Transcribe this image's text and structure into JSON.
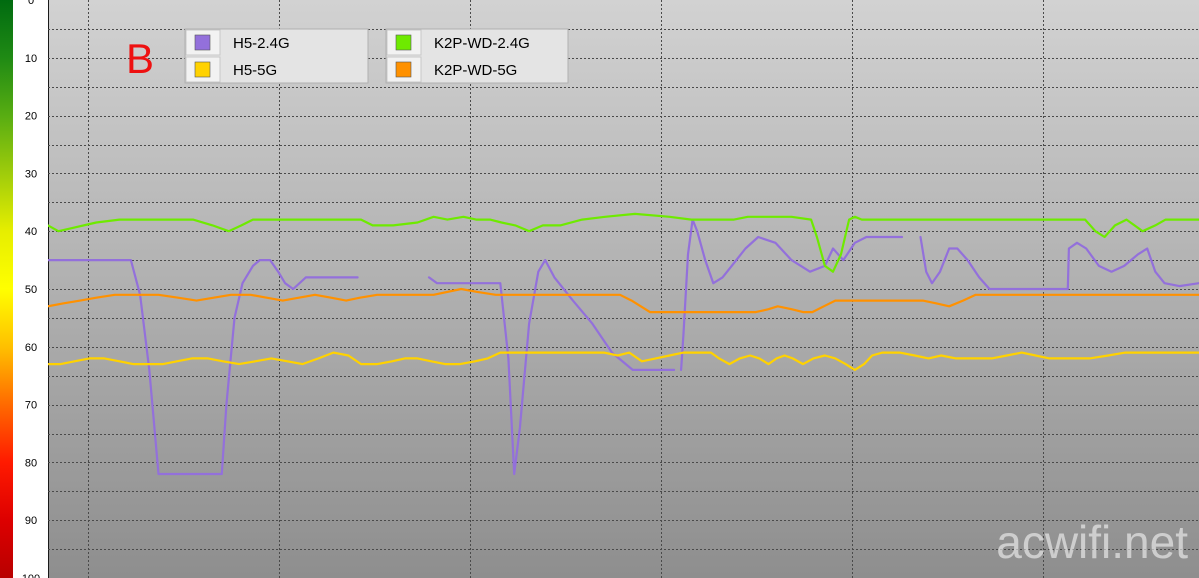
{
  "chart_data": {
    "type": "line",
    "title": "",
    "panel_label": "B",
    "watermark": "acwifi.net",
    "xlabel": "",
    "ylabel": "",
    "x_ticks": [],
    "y_ticks": [
      0,
      10,
      20,
      30,
      40,
      50,
      60,
      70,
      80,
      90,
      100
    ],
    "y_tick_labels": [
      "0",
      "10",
      "20",
      "30",
      "40",
      "50",
      "60",
      "70",
      "80",
      "90",
      "100"
    ],
    "ylim": [
      0,
      100
    ],
    "y_inverted": true,
    "xlim": [
      0,
      100
    ],
    "grid": true,
    "legend_position": "top-left",
    "colors": {
      "panel_label": "#ee1111",
      "grid": "#4a4a4a",
      "background_top": "#d2d2d2",
      "background_bottom": "#8e8e8e",
      "colorbar": [
        "#006b10",
        "#1f8a14",
        "#58ad12",
        "#9fcc0b",
        "#e6ee00",
        "#ffff00",
        "#ffc000",
        "#ff6a00",
        "#ff1a00",
        "#dd0000",
        "#b80000"
      ]
    },
    "series": [
      {
        "name": "H5-2.4G",
        "color": "#9370db",
        "points": [
          [
            0.0,
            45
          ],
          [
            7.2,
            45
          ],
          null,
          [
            7.2,
            45
          ],
          [
            8.0,
            51
          ],
          [
            8.8,
            64
          ],
          [
            9.6,
            82
          ],
          [
            15.1,
            82
          ],
          [
            15.5,
            70
          ],
          [
            16.2,
            55
          ],
          [
            16.9,
            49
          ],
          [
            17.8,
            46
          ],
          [
            18.4,
            45
          ],
          [
            19.3,
            45
          ],
          [
            20.0,
            47
          ],
          [
            20.6,
            49
          ],
          [
            21.3,
            50
          ],
          null,
          [
            21.3,
            50
          ],
          [
            22.4,
            48
          ],
          [
            26.9,
            48
          ],
          null,
          [
            33.1,
            48
          ],
          [
            33.8,
            49
          ],
          [
            39.3,
            49
          ],
          null,
          [
            39.3,
            49
          ],
          [
            40.0,
            62
          ],
          [
            40.5,
            82
          ],
          [
            41.0,
            74
          ],
          [
            41.8,
            56
          ],
          [
            42.6,
            47
          ],
          [
            43.2,
            45
          ],
          [
            44.0,
            48
          ],
          [
            45.6,
            52
          ],
          [
            47.3,
            56
          ],
          [
            49.0,
            61
          ],
          [
            50.8,
            64
          ],
          [
            54.4,
            64
          ],
          null,
          [
            55.0,
            64
          ],
          [
            55.2,
            58
          ],
          [
            55.6,
            44
          ],
          [
            56.0,
            38
          ],
          [
            56.4,
            40
          ],
          [
            57.1,
            45
          ],
          [
            57.8,
            49
          ],
          [
            58.6,
            48
          ],
          [
            59.4,
            46
          ],
          [
            60.6,
            43
          ],
          [
            61.7,
            41
          ],
          [
            63.2,
            42
          ],
          [
            64.6,
            45
          ],
          [
            66.2,
            47
          ],
          [
            67.5,
            46
          ],
          [
            68.2,
            43
          ],
          [
            69.1,
            45
          ],
          [
            70.1,
            42
          ],
          [
            71.1,
            41
          ],
          [
            74.2,
            41
          ],
          null,
          [
            75.8,
            41
          ],
          [
            76.3,
            47
          ],
          [
            76.8,
            49
          ],
          [
            77.5,
            47
          ],
          [
            78.3,
            43
          ],
          [
            79.0,
            43
          ],
          [
            79.9,
            45
          ],
          [
            80.9,
            48
          ],
          [
            81.8,
            50
          ],
          [
            88.6,
            50
          ],
          [
            88.7,
            43
          ],
          [
            89.4,
            42
          ],
          [
            90.2,
            43
          ],
          [
            91.3,
            46
          ],
          [
            92.4,
            47
          ],
          [
            93.5,
            46
          ],
          [
            94.7,
            44
          ],
          [
            95.5,
            43
          ],
          [
            96.2,
            47
          ],
          [
            97.0,
            49
          ],
          [
            98.3,
            49.5
          ],
          [
            100.0,
            49
          ]
        ]
      },
      {
        "name": "H5-5G",
        "color": "#ffd200",
        "points": [
          [
            0.0,
            63
          ],
          [
            1.1,
            63
          ],
          [
            2.3,
            62.5
          ],
          [
            3.6,
            62
          ],
          [
            4.9,
            62
          ],
          [
            6.2,
            62.5
          ],
          [
            7.4,
            63
          ],
          [
            8.7,
            63
          ],
          [
            10.0,
            63
          ],
          [
            11.2,
            62.5
          ],
          [
            12.5,
            62
          ],
          [
            13.9,
            62
          ],
          [
            15.2,
            62.5
          ],
          [
            16.6,
            63
          ],
          [
            18.0,
            62.5
          ],
          [
            19.4,
            62
          ],
          [
            20.8,
            62.5
          ],
          [
            22.1,
            63
          ],
          [
            23.5,
            62
          ],
          [
            24.8,
            61
          ],
          [
            26.1,
            61.5
          ],
          [
            27.2,
            63
          ],
          [
            28.6,
            63
          ],
          [
            29.9,
            62.5
          ],
          [
            31.0,
            62
          ],
          [
            32.1,
            62
          ],
          [
            33.3,
            62.5
          ],
          [
            34.5,
            63
          ],
          [
            35.8,
            63
          ],
          [
            37.1,
            62.5
          ],
          [
            38.2,
            62
          ],
          [
            39.3,
            61
          ],
          [
            40.6,
            61
          ],
          [
            41.9,
            61
          ],
          [
            43.2,
            61
          ],
          [
            44.4,
            61
          ],
          [
            45.8,
            61
          ],
          [
            47.0,
            61
          ],
          [
            48.3,
            61
          ],
          [
            49.5,
            61.5
          ],
          [
            50.5,
            61
          ],
          [
            51.6,
            62.5
          ],
          [
            52.8,
            62
          ],
          [
            54.0,
            61.5
          ],
          [
            55.2,
            61
          ],
          [
            56.4,
            61
          ],
          [
            57.6,
            61
          ],
          [
            58.3,
            62
          ],
          [
            59.2,
            63
          ],
          [
            60.1,
            62
          ],
          [
            61.0,
            61.5
          ],
          [
            61.8,
            62
          ],
          [
            62.6,
            63
          ],
          [
            63.3,
            62
          ],
          [
            64.0,
            61.5
          ],
          [
            64.7,
            62
          ],
          [
            65.6,
            63
          ],
          [
            66.5,
            62
          ],
          [
            67.5,
            61.5
          ],
          [
            68.4,
            62
          ],
          [
            69.3,
            63
          ],
          [
            70.1,
            64
          ],
          [
            70.9,
            63
          ],
          [
            71.6,
            61.5
          ],
          [
            72.5,
            61
          ],
          [
            74.0,
            61
          ],
          [
            75.3,
            61.5
          ],
          [
            76.5,
            62
          ],
          [
            77.6,
            61.5
          ],
          [
            78.9,
            62
          ],
          [
            80.4,
            62
          ],
          [
            82.0,
            62
          ],
          [
            83.3,
            61.5
          ],
          [
            84.6,
            61
          ],
          [
            85.8,
            61.5
          ],
          [
            87.0,
            62
          ],
          [
            88.8,
            62
          ],
          [
            90.5,
            62
          ],
          [
            92.1,
            61.5
          ],
          [
            93.6,
            61
          ],
          [
            100.0,
            61
          ]
        ]
      },
      {
        "name": "K2P-WD-2.4G",
        "color": "#6eea00",
        "points": [
          [
            0.0,
            39
          ],
          [
            0.9,
            40
          ],
          [
            2.0,
            39.5
          ],
          [
            4.2,
            38.5
          ],
          [
            6.2,
            38
          ],
          [
            8.4,
            38
          ],
          [
            10.4,
            38
          ],
          [
            12.6,
            38
          ],
          [
            14.3,
            39
          ],
          [
            15.7,
            40
          ],
          [
            16.8,
            39
          ],
          [
            17.8,
            38
          ],
          [
            19.3,
            38
          ],
          [
            21.4,
            38
          ],
          [
            25.1,
            38
          ],
          [
            27.2,
            38
          ],
          [
            28.2,
            39
          ],
          [
            30.0,
            39
          ],
          [
            32.1,
            38.5
          ],
          [
            33.5,
            37.5
          ],
          [
            34.7,
            38
          ],
          [
            36.1,
            37.5
          ],
          [
            37.2,
            38
          ],
          [
            38.4,
            38
          ],
          [
            39.4,
            38.5
          ],
          [
            40.6,
            39
          ],
          [
            41.8,
            40
          ],
          [
            43.0,
            39
          ],
          [
            44.5,
            39
          ],
          [
            46.4,
            38
          ],
          [
            48.4,
            37.5
          ],
          [
            51.0,
            37
          ],
          [
            54.0,
            37.5
          ],
          [
            55.9,
            38
          ],
          [
            58.0,
            38
          ],
          [
            59.6,
            38
          ],
          [
            60.8,
            37.5
          ],
          [
            62.4,
            37.5
          ],
          [
            64.6,
            37.5
          ],
          [
            66.3,
            38
          ],
          [
            66.8,
            41
          ],
          [
            67.5,
            46
          ],
          [
            68.2,
            47
          ],
          [
            68.9,
            44
          ],
          [
            69.6,
            38
          ],
          [
            70.1,
            37.5
          ],
          [
            70.7,
            38
          ],
          [
            72.0,
            38
          ],
          [
            75.0,
            38
          ],
          [
            78.7,
            38
          ],
          [
            81.9,
            38
          ],
          [
            85.1,
            38
          ],
          [
            88.5,
            38
          ],
          [
            90.1,
            38
          ],
          [
            91.0,
            40
          ],
          [
            91.8,
            41
          ],
          [
            92.7,
            39
          ],
          [
            93.7,
            38
          ],
          [
            94.4,
            39
          ],
          [
            95.1,
            40
          ],
          [
            96.2,
            39
          ],
          [
            97.1,
            38
          ],
          [
            100.0,
            38
          ]
        ]
      },
      {
        "name": "K2P-WD-5G",
        "color": "#ff9100",
        "points": [
          [
            0.0,
            53
          ],
          [
            1.3,
            52.5
          ],
          [
            2.8,
            52
          ],
          [
            4.2,
            51.5
          ],
          [
            5.8,
            51
          ],
          [
            7.8,
            51
          ],
          [
            9.6,
            51
          ],
          [
            11.3,
            51.5
          ],
          [
            12.9,
            52
          ],
          [
            14.4,
            51.5
          ],
          [
            15.9,
            51
          ],
          [
            17.6,
            51
          ],
          [
            19.0,
            51.5
          ],
          [
            20.4,
            52
          ],
          [
            21.8,
            51.5
          ],
          [
            23.2,
            51
          ],
          [
            24.6,
            51.5
          ],
          [
            25.9,
            52
          ],
          [
            27.1,
            51.5
          ],
          [
            28.6,
            51
          ],
          [
            30.6,
            51
          ],
          [
            33.5,
            51
          ],
          [
            35.9,
            50
          ],
          [
            37.3,
            50.5
          ],
          [
            38.9,
            51
          ],
          [
            41.5,
            51
          ],
          [
            43.6,
            51
          ],
          [
            46.3,
            51
          ],
          [
            48.0,
            51
          ],
          [
            49.7,
            51
          ],
          [
            50.7,
            52
          ],
          [
            51.5,
            53
          ],
          [
            52.3,
            54
          ],
          [
            54.0,
            54
          ],
          [
            56.1,
            54
          ],
          [
            58.8,
            54
          ],
          [
            61.5,
            54
          ],
          [
            62.6,
            53.5
          ],
          [
            63.4,
            53
          ],
          [
            64.6,
            53.5
          ],
          [
            65.6,
            54
          ],
          [
            66.4,
            54
          ],
          [
            67.4,
            53
          ],
          [
            68.4,
            52
          ],
          [
            70.7,
            52
          ],
          [
            73.6,
            52
          ],
          [
            76.0,
            52
          ],
          [
            77.2,
            52.5
          ],
          [
            78.3,
            53
          ],
          [
            79.5,
            52
          ],
          [
            80.6,
            51
          ],
          [
            83.3,
            51
          ],
          [
            85.6,
            51
          ],
          [
            89.5,
            51
          ],
          [
            92.3,
            51
          ],
          [
            100.0,
            51
          ]
        ]
      }
    ]
  }
}
